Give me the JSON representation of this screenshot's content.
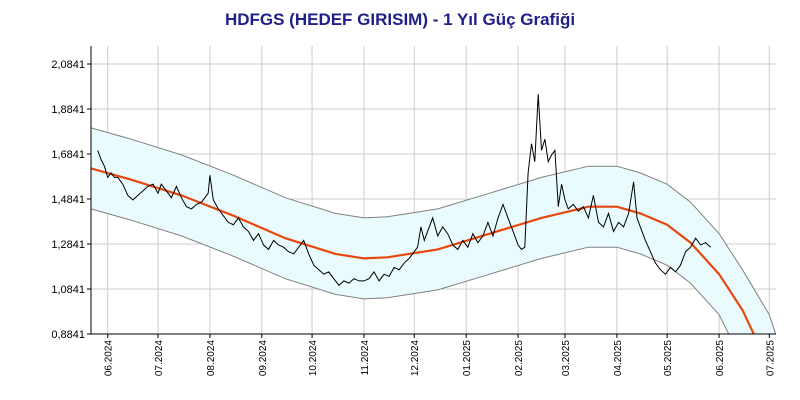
{
  "chart_data": {
    "type": "line",
    "title": "HDFGS (HEDEF GIRISIM) - 1 Yıl Güç Grafiği",
    "xlabel": "",
    "ylabel": "",
    "ylim": [
      0.8841,
      2.1641
    ],
    "xlim": [
      "2024-05-22",
      "2025-07-05"
    ],
    "grid": true,
    "y_ticks": [
      "0,8841",
      "1,0841",
      "1,2841",
      "1,4841",
      "1,6841",
      "1,8841",
      "2,0841"
    ],
    "x_ticks": [
      {
        "label": "06.2024",
        "date": "2024-06-01"
      },
      {
        "label": "07.2024",
        "date": "2024-07-01"
      },
      {
        "label": "08.2024",
        "date": "2024-08-01"
      },
      {
        "label": "09.2024",
        "date": "2024-09-01"
      },
      {
        "label": "10.2024",
        "date": "2024-10-01"
      },
      {
        "label": "11.2024",
        "date": "2024-11-01"
      },
      {
        "label": "12.2024",
        "date": "2024-12-01"
      },
      {
        "label": "01.2025",
        "date": "2025-01-01"
      },
      {
        "label": "02.2025",
        "date": "2025-02-01"
      },
      {
        "label": "03.2025",
        "date": "2025-03-01"
      },
      {
        "label": "04.2025",
        "date": "2025-04-01"
      },
      {
        "label": "05.2025",
        "date": "2025-05-01"
      },
      {
        "label": "06.2025",
        "date": "2025-06-01"
      },
      {
        "label": "07.2025",
        "date": "2025-07-01"
      }
    ],
    "colors": {
      "price": "#000000",
      "trend": "#e8480e",
      "band_fill": "#e9fbfd",
      "band_line": "#808080",
      "grid": "#cccccc",
      "title": "#1f1f8a"
    },
    "series": [
      {
        "role": "price",
        "points": [
          [
            "2024-05-26",
            1.7
          ],
          [
            "2024-05-28",
            1.66
          ],
          [
            "2024-05-30",
            1.63
          ],
          [
            "2024-06-01",
            1.58
          ],
          [
            "2024-06-03",
            1.6
          ],
          [
            "2024-06-05",
            1.58
          ],
          [
            "2024-06-07",
            1.58
          ],
          [
            "2024-06-10",
            1.55
          ],
          [
            "2024-06-13",
            1.5
          ],
          [
            "2024-06-16",
            1.48
          ],
          [
            "2024-06-19",
            1.5
          ],
          [
            "2024-06-22",
            1.52
          ],
          [
            "2024-06-25",
            1.54
          ],
          [
            "2024-06-28",
            1.55
          ],
          [
            "2024-07-01",
            1.51
          ],
          [
            "2024-07-03",
            1.55
          ],
          [
            "2024-07-06",
            1.52
          ],
          [
            "2024-07-09",
            1.49
          ],
          [
            "2024-07-12",
            1.54
          ],
          [
            "2024-07-15",
            1.49
          ],
          [
            "2024-07-18",
            1.45
          ],
          [
            "2024-07-21",
            1.44
          ],
          [
            "2024-07-24",
            1.46
          ],
          [
            "2024-07-27",
            1.47
          ],
          [
            "2024-07-29",
            1.49
          ],
          [
            "2024-07-31",
            1.51
          ],
          [
            "2024-08-01",
            1.59
          ],
          [
            "2024-08-03",
            1.48
          ],
          [
            "2024-08-06",
            1.44
          ],
          [
            "2024-08-09",
            1.41
          ],
          [
            "2024-08-12",
            1.38
          ],
          [
            "2024-08-15",
            1.37
          ],
          [
            "2024-08-18",
            1.4
          ],
          [
            "2024-08-21",
            1.36
          ],
          [
            "2024-08-24",
            1.34
          ],
          [
            "2024-08-27",
            1.3
          ],
          [
            "2024-08-30",
            1.33
          ],
          [
            "2024-09-02",
            1.28
          ],
          [
            "2024-09-05",
            1.26
          ],
          [
            "2024-09-08",
            1.3
          ],
          [
            "2024-09-11",
            1.28
          ],
          [
            "2024-09-14",
            1.27
          ],
          [
            "2024-09-17",
            1.25
          ],
          [
            "2024-09-20",
            1.24
          ],
          [
            "2024-09-23",
            1.27
          ],
          [
            "2024-09-26",
            1.3
          ],
          [
            "2024-09-29",
            1.24
          ],
          [
            "2024-10-02",
            1.19
          ],
          [
            "2024-10-05",
            1.17
          ],
          [
            "2024-10-08",
            1.15
          ],
          [
            "2024-10-11",
            1.16
          ],
          [
            "2024-10-14",
            1.13
          ],
          [
            "2024-10-17",
            1.1
          ],
          [
            "2024-10-20",
            1.12
          ],
          [
            "2024-10-23",
            1.11
          ],
          [
            "2024-10-26",
            1.13
          ],
          [
            "2024-10-29",
            1.12
          ],
          [
            "2024-11-01",
            1.12
          ],
          [
            "2024-11-04",
            1.13
          ],
          [
            "2024-11-07",
            1.16
          ],
          [
            "2024-11-10",
            1.12
          ],
          [
            "2024-11-13",
            1.15
          ],
          [
            "2024-11-16",
            1.14
          ],
          [
            "2024-11-19",
            1.18
          ],
          [
            "2024-11-22",
            1.17
          ],
          [
            "2024-11-25",
            1.2
          ],
          [
            "2024-11-28",
            1.22
          ],
          [
            "2024-12-01",
            1.25
          ],
          [
            "2024-12-03",
            1.27
          ],
          [
            "2024-12-05",
            1.36
          ],
          [
            "2024-12-07",
            1.3
          ],
          [
            "2024-12-09",
            1.34
          ],
          [
            "2024-12-12",
            1.4
          ],
          [
            "2024-12-15",
            1.32
          ],
          [
            "2024-12-18",
            1.36
          ],
          [
            "2024-12-21",
            1.33
          ],
          [
            "2024-12-24",
            1.28
          ],
          [
            "2024-12-27",
            1.26
          ],
          [
            "2024-12-30",
            1.3
          ],
          [
            "2025-01-02",
            1.27
          ],
          [
            "2025-01-05",
            1.33
          ],
          [
            "2025-01-08",
            1.29
          ],
          [
            "2025-01-11",
            1.32
          ],
          [
            "2025-01-14",
            1.38
          ],
          [
            "2025-01-17",
            1.32
          ],
          [
            "2025-01-20",
            1.4
          ],
          [
            "2025-01-23",
            1.46
          ],
          [
            "2025-01-26",
            1.4
          ],
          [
            "2025-01-29",
            1.34
          ],
          [
            "2025-02-01",
            1.28
          ],
          [
            "2025-02-03",
            1.26
          ],
          [
            "2025-02-05",
            1.27
          ],
          [
            "2025-02-07",
            1.6
          ],
          [
            "2025-02-09",
            1.73
          ],
          [
            "2025-02-11",
            1.65
          ],
          [
            "2025-02-13",
            1.95
          ],
          [
            "2025-02-15",
            1.7
          ],
          [
            "2025-02-17",
            1.75
          ],
          [
            "2025-02-19",
            1.65
          ],
          [
            "2025-02-21",
            1.68
          ],
          [
            "2025-02-23",
            1.7
          ],
          [
            "2025-02-25",
            1.45
          ],
          [
            "2025-02-27",
            1.55
          ],
          [
            "2025-03-01",
            1.48
          ],
          [
            "2025-03-03",
            1.44
          ],
          [
            "2025-03-06",
            1.46
          ],
          [
            "2025-03-09",
            1.43
          ],
          [
            "2025-03-12",
            1.45
          ],
          [
            "2025-03-15",
            1.4
          ],
          [
            "2025-03-18",
            1.5
          ],
          [
            "2025-03-21",
            1.38
          ],
          [
            "2025-03-24",
            1.36
          ],
          [
            "2025-03-27",
            1.42
          ],
          [
            "2025-03-30",
            1.34
          ],
          [
            "2025-04-02",
            1.38
          ],
          [
            "2025-04-05",
            1.36
          ],
          [
            "2025-04-08",
            1.42
          ],
          [
            "2025-04-11",
            1.56
          ],
          [
            "2025-04-13",
            1.4
          ],
          [
            "2025-04-15",
            1.36
          ],
          [
            "2025-04-18",
            1.3
          ],
          [
            "2025-04-21",
            1.25
          ],
          [
            "2025-04-24",
            1.2
          ],
          [
            "2025-04-27",
            1.17
          ],
          [
            "2025-04-30",
            1.15
          ],
          [
            "2025-05-03",
            1.18
          ],
          [
            "2025-05-06",
            1.16
          ],
          [
            "2025-05-09",
            1.19
          ],
          [
            "2025-05-12",
            1.25
          ],
          [
            "2025-05-15",
            1.27
          ],
          [
            "2025-05-18",
            1.31
          ],
          [
            "2025-05-21",
            1.28
          ],
          [
            "2025-05-24",
            1.29
          ],
          [
            "2025-05-27",
            1.27
          ]
        ]
      },
      {
        "role": "regression-trend",
        "points": [
          [
            "2024-05-22",
            1.62
          ],
          [
            "2024-06-15",
            1.57
          ],
          [
            "2024-07-15",
            1.5
          ],
          [
            "2024-08-15",
            1.41
          ],
          [
            "2024-09-15",
            1.31
          ],
          [
            "2024-10-15",
            1.24
          ],
          [
            "2024-11-01",
            1.22
          ],
          [
            "2024-11-15",
            1.225
          ],
          [
            "2024-12-15",
            1.26
          ],
          [
            "2025-01-15",
            1.33
          ],
          [
            "2025-02-15",
            1.4
          ],
          [
            "2025-03-15",
            1.45
          ],
          [
            "2025-04-01",
            1.45
          ],
          [
            "2025-04-15",
            1.42
          ],
          [
            "2025-05-01",
            1.37
          ],
          [
            "2025-05-15",
            1.29
          ],
          [
            "2025-06-01",
            1.15
          ],
          [
            "2025-06-15",
            0.99
          ],
          [
            "2025-06-22",
            0.88
          ]
        ]
      },
      {
        "role": "band-upper",
        "points": [
          [
            "2024-05-22",
            1.8
          ],
          [
            "2024-06-15",
            1.75
          ],
          [
            "2024-07-15",
            1.68
          ],
          [
            "2024-08-15",
            1.59
          ],
          [
            "2024-09-15",
            1.49
          ],
          [
            "2024-10-15",
            1.42
          ],
          [
            "2024-11-01",
            1.4
          ],
          [
            "2024-11-15",
            1.405
          ],
          [
            "2024-12-15",
            1.44
          ],
          [
            "2025-01-15",
            1.51
          ],
          [
            "2025-02-15",
            1.58
          ],
          [
            "2025-03-15",
            1.63
          ],
          [
            "2025-04-01",
            1.63
          ],
          [
            "2025-04-15",
            1.6
          ],
          [
            "2025-05-01",
            1.55
          ],
          [
            "2025-05-15",
            1.47
          ],
          [
            "2025-06-01",
            1.33
          ],
          [
            "2025-06-15",
            1.17
          ],
          [
            "2025-07-01",
            0.97
          ],
          [
            "2025-07-05",
            0.88
          ]
        ]
      },
      {
        "role": "band-lower",
        "points": [
          [
            "2024-05-22",
            1.44
          ],
          [
            "2024-06-15",
            1.39
          ],
          [
            "2024-07-15",
            1.32
          ],
          [
            "2024-08-15",
            1.23
          ],
          [
            "2024-09-15",
            1.13
          ],
          [
            "2024-10-15",
            1.06
          ],
          [
            "2024-11-01",
            1.04
          ],
          [
            "2024-11-15",
            1.045
          ],
          [
            "2024-12-15",
            1.08
          ],
          [
            "2025-01-15",
            1.15
          ],
          [
            "2025-02-15",
            1.22
          ],
          [
            "2025-03-15",
            1.27
          ],
          [
            "2025-04-01",
            1.27
          ],
          [
            "2025-04-15",
            1.24
          ],
          [
            "2025-05-01",
            1.19
          ],
          [
            "2025-05-15",
            1.11
          ],
          [
            "2025-06-01",
            0.97
          ],
          [
            "2025-06-07",
            0.88
          ]
        ]
      }
    ]
  }
}
